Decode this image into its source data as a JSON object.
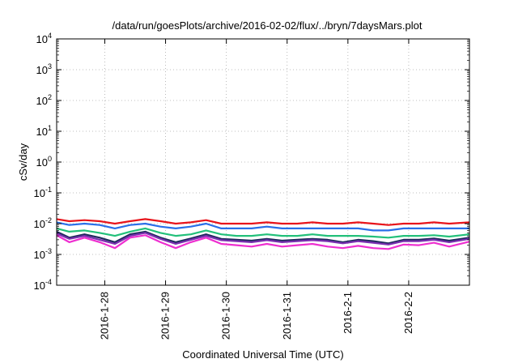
{
  "chart_data": {
    "type": "line",
    "title": "/data/run/goesPlots/archive/2016-02-02/flux/../bryn/7daysMars.plot",
    "xlabel": "Coordinated Universal Time (UTC)",
    "ylabel": "cSv/day",
    "y_scale": "log",
    "ylim": [
      0.0001,
      10000
    ],
    "y_ticks": [
      {
        "value": 0.0001,
        "base": "10",
        "exp": "-4"
      },
      {
        "value": 0.001,
        "base": "10",
        "exp": "-3"
      },
      {
        "value": 0.01,
        "base": "10",
        "exp": "-2"
      },
      {
        "value": 0.1,
        "base": "10",
        "exp": "-1"
      },
      {
        "value": 1,
        "base": "10",
        "exp": "0"
      },
      {
        "value": 10,
        "base": "10",
        "exp": "1"
      },
      {
        "value": 100,
        "base": "10",
        "exp": "2"
      },
      {
        "value": 1000,
        "base": "10",
        "exp": "3"
      },
      {
        "value": 10000,
        "base": "10",
        "exp": "4"
      }
    ],
    "x_type": "date",
    "xlim": [
      "2016-01-27T05:00",
      "2016-02-02T23:59"
    ],
    "x_ticks": [
      "2016-1-28",
      "2016-1-29",
      "2016-1-30",
      "2016-1-31",
      "2016-2-1",
      "2016-2-2"
    ],
    "grid": true,
    "series_x": [
      "2016-01-27T05:00",
      "2016-01-27T10:00",
      "2016-01-27T16:00",
      "2016-01-27T22:00",
      "2016-01-28T04:00",
      "2016-01-28T10:00",
      "2016-01-28T16:00",
      "2016-01-28T22:00",
      "2016-01-29T04:00",
      "2016-01-29T10:00",
      "2016-01-29T16:00",
      "2016-01-29T22:00",
      "2016-01-30T04:00",
      "2016-01-30T10:00",
      "2016-01-30T16:00",
      "2016-01-30T22:00",
      "2016-01-31T04:00",
      "2016-01-31T10:00",
      "2016-01-31T16:00",
      "2016-01-31T22:00",
      "2016-02-01T04:00",
      "2016-02-01T10:00",
      "2016-02-01T16:00",
      "2016-02-01T22:00",
      "2016-02-02T04:00",
      "2016-02-02T10:00",
      "2016-02-02T16:00",
      "2016-02-02T23:59"
    ],
    "series": [
      {
        "color": "#e8141b",
        "values": [
          0.014,
          0.012,
          0.013,
          0.012,
          0.01,
          0.012,
          0.014,
          0.012,
          0.01,
          0.011,
          0.013,
          0.01,
          0.01,
          0.01,
          0.011,
          0.01,
          0.01,
          0.011,
          0.01,
          0.01,
          0.011,
          0.01,
          0.009,
          0.01,
          0.01,
          0.011,
          0.01,
          0.011
        ]
      },
      {
        "color": "#2a6fe8",
        "values": [
          0.011,
          0.009,
          0.01,
          0.009,
          0.007,
          0.009,
          0.01,
          0.008,
          0.007,
          0.008,
          0.01,
          0.007,
          0.007,
          0.007,
          0.008,
          0.007,
          0.007,
          0.007,
          0.007,
          0.007,
          0.007,
          0.006,
          0.006,
          0.007,
          0.007,
          0.007,
          0.007,
          0.007
        ]
      },
      {
        "color": "#22c07a",
        "values": [
          0.007,
          0.0055,
          0.006,
          0.005,
          0.004,
          0.0055,
          0.007,
          0.005,
          0.004,
          0.0045,
          0.006,
          0.0045,
          0.004,
          0.004,
          0.0045,
          0.004,
          0.004,
          0.0045,
          0.004,
          0.004,
          0.004,
          0.0038,
          0.0035,
          0.004,
          0.004,
          0.0042,
          0.0038,
          0.0045
        ]
      },
      {
        "color": "#1f2a5c",
        "values": [
          0.0055,
          0.0035,
          0.0045,
          0.0035,
          0.0025,
          0.0045,
          0.0055,
          0.0035,
          0.0025,
          0.0033,
          0.0045,
          0.0032,
          0.003,
          0.0028,
          0.0032,
          0.0028,
          0.003,
          0.0032,
          0.003,
          0.0025,
          0.003,
          0.0027,
          0.0023,
          0.003,
          0.003,
          0.0033,
          0.0028,
          0.0035
        ]
      },
      {
        "color": "#7a2fb0",
        "values": [
          0.0048,
          0.0032,
          0.004,
          0.003,
          0.0022,
          0.004,
          0.005,
          0.0032,
          0.0022,
          0.003,
          0.004,
          0.0029,
          0.0027,
          0.0025,
          0.0029,
          0.0025,
          0.0027,
          0.0029,
          0.0027,
          0.0023,
          0.0027,
          0.0024,
          0.0021,
          0.0027,
          0.0027,
          0.003,
          0.0025,
          0.0032
        ]
      },
      {
        "color": "#ee2fd0",
        "values": [
          0.0042,
          0.0025,
          0.0035,
          0.0025,
          0.0016,
          0.0035,
          0.0042,
          0.0025,
          0.0016,
          0.0025,
          0.0035,
          0.0022,
          0.002,
          0.0018,
          0.0022,
          0.0018,
          0.002,
          0.0022,
          0.0018,
          0.0016,
          0.0019,
          0.0016,
          0.0015,
          0.0021,
          0.002,
          0.0024,
          0.0018,
          0.0026
        ]
      }
    ]
  }
}
